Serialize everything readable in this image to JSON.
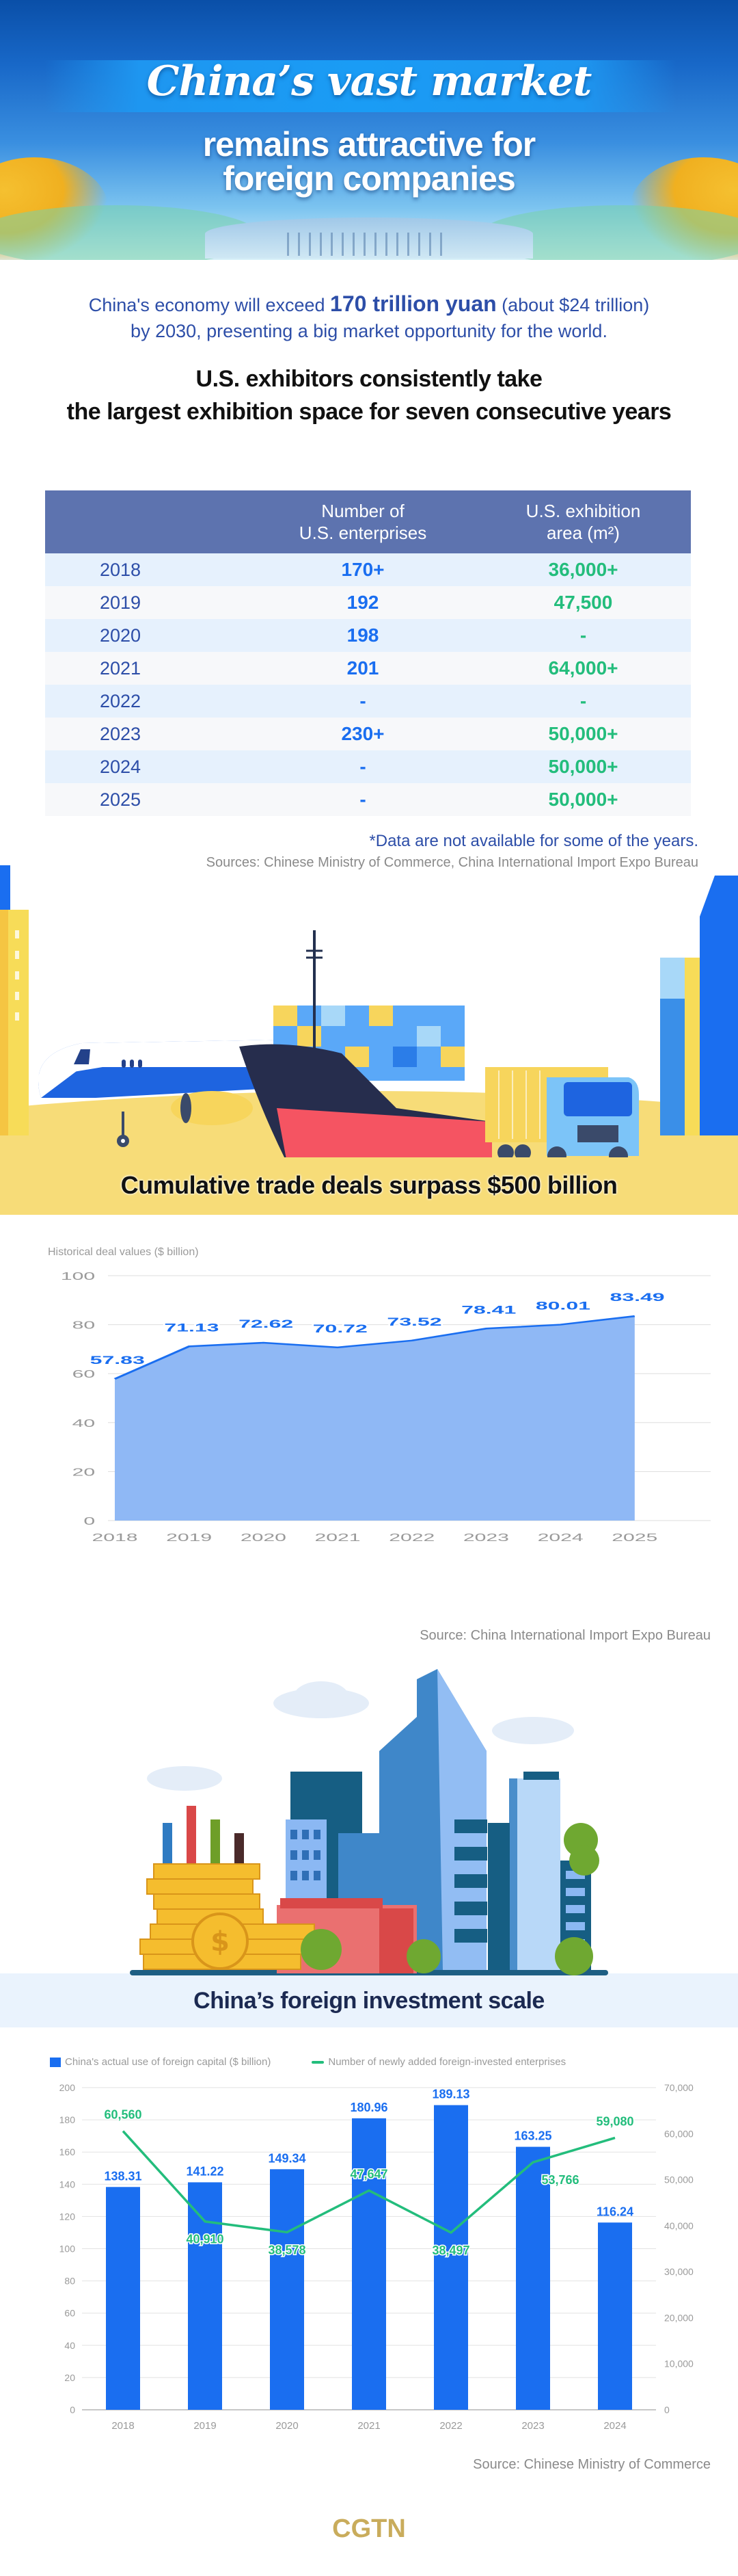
{
  "header": {
    "title_line1": "China’s vast market",
    "title_line2a": "remains attractive for",
    "title_line2b": "foreign companies"
  },
  "intro": {
    "part1": "China's economy will exceed ",
    "highlight": "170 trillion yuan",
    "part2": " (about $24 trillion)",
    "line2": "by 2030, presenting a big market opportunity for the world."
  },
  "section1": {
    "title_line1": "U.S. exhibitors consistently take",
    "title_line2": "the largest exhibition space for seven consecutive years"
  },
  "table": {
    "headers": [
      "",
      "Number of\nU.S. enterprises",
      "U.S. exhibition\narea (m²)"
    ],
    "header_col1_line1": "Number of",
    "header_col1_line2": "U.S. enterprises",
    "header_col2_line1": "U.S. exhibition",
    "header_col2_line2": "area (m²)",
    "rows": [
      {
        "year": "2018",
        "enterprises": "170+",
        "area": "36,000+"
      },
      {
        "year": "2019",
        "enterprises": "192",
        "area": "47,500"
      },
      {
        "year": "2020",
        "enterprises": "198",
        "area": "-"
      },
      {
        "year": "2021",
        "enterprises": "201",
        "area": "64,000+"
      },
      {
        "year": "2022",
        "enterprises": "-",
        "area": "-"
      },
      {
        "year": "2023",
        "enterprises": "230+",
        "area": "50,000+"
      },
      {
        "year": "2024",
        "enterprises": "-",
        "area": "50,000+"
      },
      {
        "year": "2025",
        "enterprises": "-",
        "area": "50,000+"
      }
    ],
    "note": "*Data are not available for some of the years.",
    "sources": "Sources: Chinese Ministry of Commerce, China International Import Expo Bureau"
  },
  "section2": {
    "title": "Cumulative trade deals surpass $500 billion"
  },
  "section3": {
    "title": "China’s foreign investment scale"
  },
  "colors": {
    "title_blue": "#2d4ea8",
    "table_header": "#5d73af",
    "enterprise_blue": "#1a6ef0",
    "area_green": "#23bd7c",
    "area_fill": "#8fb8f5",
    "bar_blue": "#1a6ef0",
    "line_green": "#23bd7c",
    "cgtn_gold": "#c9ac5c"
  },
  "chart_data": [
    {
      "type": "area",
      "title": "Historical deal values ($ billion)",
      "ylabel": "Historical deal values ($ billion)",
      "xlabel": "",
      "categories": [
        "2018",
        "2019",
        "2020",
        "2021",
        "2022",
        "2023",
        "2024",
        "2025"
      ],
      "values": [
        57.83,
        71.13,
        72.62,
        70.72,
        73.52,
        78.41,
        80.01,
        83.49
      ],
      "labels": [
        "57.83",
        "71.13",
        "72.62",
        "70.72",
        "73.52",
        "78.41",
        "80.01",
        "83.49"
      ],
      "ylim": [
        0,
        100
      ],
      "yticks": [
        "0",
        "20",
        "40",
        "60",
        "80",
        "100"
      ],
      "grid": true,
      "legend": "none",
      "source": "Source: China International Import Expo Bureau"
    },
    {
      "type": "bar",
      "categories": [
        "2018",
        "2019",
        "2020",
        "2021",
        "2022",
        "2023",
        "2024"
      ],
      "series": [
        {
          "name": "China's actual use of foreign capital ($ billion)",
          "type": "bar",
          "axis": "left",
          "values": [
            138.31,
            141.22,
            149.34,
            180.96,
            189.13,
            163.25,
            116.24
          ],
          "labels": [
            "138.31",
            "141.22",
            "149.34",
            "180.96",
            "189.13",
            "163.25",
            "116.24"
          ]
        },
        {
          "name": "Number of newly added foreign-invested enterprises",
          "type": "line",
          "axis": "right",
          "values": [
            60560,
            40910,
            38578,
            47647,
            38497,
            53766,
            59080
          ],
          "labels": [
            "60,560",
            "40,910",
            "38,578",
            "47,647",
            "38,497",
            "53,766",
            "59,080"
          ]
        }
      ],
      "ylim_left": [
        0,
        200
      ],
      "yticks_left": [
        "0",
        "20",
        "40",
        "60",
        "80",
        "100",
        "120",
        "140",
        "160",
        "180",
        "200"
      ],
      "ylim_right": [
        0,
        70000
      ],
      "yticks_right": [
        "0",
        "10,000",
        "20,000",
        "30,000",
        "40,000",
        "50,000",
        "60,000",
        "70,000"
      ],
      "grid": true,
      "legend_position": "top",
      "source": "Source: Chinese Ministry of Commerce"
    }
  ],
  "footer": {
    "brand": "CGTN"
  }
}
